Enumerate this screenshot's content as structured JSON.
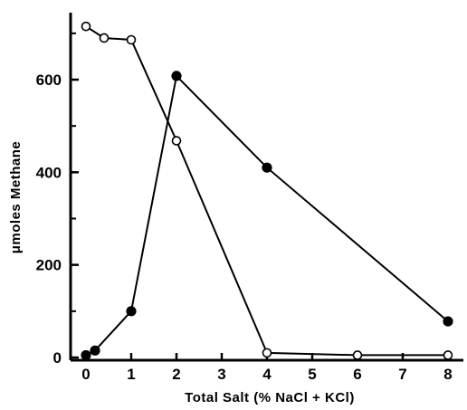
{
  "chart_data": {
    "type": "line",
    "title": "",
    "xlabel": "Total Salt (% NaCl + KCl)",
    "ylabel": "μmoles Methane",
    "xlim": [
      -0.2,
      8.3
    ],
    "ylim": [
      0,
      740
    ],
    "x_ticks": [
      0,
      1,
      2,
      3,
      4,
      5,
      6,
      7,
      8
    ],
    "y_ticks": [
      0,
      200,
      400,
      600
    ],
    "grid": false,
    "legend": "none",
    "series": [
      {
        "marker": "filled-circle",
        "color": "#000000",
        "points": [
          [
            0,
            5
          ],
          [
            0.2,
            15
          ],
          [
            1,
            100
          ],
          [
            2,
            608
          ],
          [
            4,
            410
          ],
          [
            8,
            78
          ]
        ]
      },
      {
        "marker": "open-circle",
        "color": "#000000",
        "points": [
          [
            0,
            715
          ],
          [
            0.4,
            690
          ],
          [
            1,
            686
          ],
          [
            2,
            468
          ],
          [
            4,
            10
          ],
          [
            6,
            5
          ],
          [
            8,
            5
          ]
        ]
      }
    ]
  }
}
